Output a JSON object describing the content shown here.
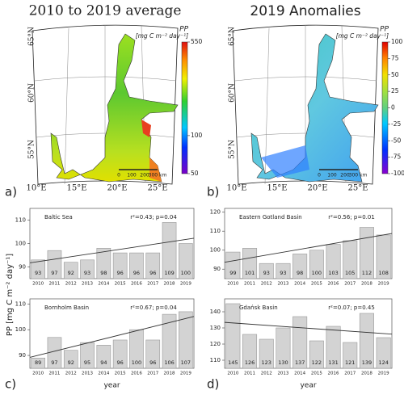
{
  "maps": [
    {
      "title": "2010 to 2019 average",
      "panel": "a)",
      "colorbar": {
        "var": "PP",
        "unit": "[mg C m⁻² day⁻¹]",
        "lim": [
          50,
          550
        ],
        "ticks": [
          50,
          100,
          550
        ],
        "log_scale": true
      },
      "lat_labels": [
        "65°N",
        "60°N",
        "55°N"
      ],
      "lon_labels": [
        "10°E",
        "15°E",
        "20°E",
        "25°E"
      ],
      "scale_labels": [
        "0",
        "100",
        "200",
        "300 km"
      ]
    },
    {
      "title": "2019 Anomalies",
      "panel": "b)",
      "colorbar": {
        "var": "PP",
        "unit": "[mg C m⁻² day⁻¹]",
        "lim": [
          -100,
          100
        ],
        "ticks": [
          -100,
          -75,
          -50,
          -25,
          0,
          25,
          50,
          75,
          100
        ],
        "log_scale": false
      },
      "lat_labels": [
        "65°N",
        "60°N",
        "55°N"
      ],
      "lon_labels": [
        "10°E",
        "15°E",
        "20°E",
        "25°E"
      ],
      "scale_labels": [
        "0",
        "100",
        "200",
        "300 km"
      ]
    }
  ],
  "shared_ylabel": "PP [mg C m⁻² day⁻¹]",
  "chart_data": [
    {
      "type": "bar",
      "title": "Baltic Sea",
      "annotation": "r²=0.43;  p=0.04",
      "color": "#d3d3d3",
      "trend": true,
      "categories": [
        "2010",
        "2011",
        "2012",
        "2013",
        "2014",
        "2015",
        "2016",
        "2017",
        "2018",
        "2019"
      ],
      "values": [
        93,
        97,
        92,
        93,
        98,
        96,
        96,
        96,
        109,
        100
      ],
      "ylim": [
        85,
        115
      ],
      "yticks": [
        90,
        100,
        110
      ]
    },
    {
      "type": "bar",
      "title": "Eastern Gotland Basin",
      "annotation": "r²=0.56;  p=0.01",
      "color": "#d3d3d3",
      "trend": true,
      "categories": [
        "2010",
        "2011",
        "2012",
        "2013",
        "2014",
        "2015",
        "2016",
        "2017",
        "2018",
        "2019"
      ],
      "values": [
        99,
        101,
        93,
        93,
        98,
        100,
        103,
        105,
        112,
        108
      ],
      "ylim": [
        85,
        122
      ],
      "yticks": [
        90,
        100,
        110,
        120
      ]
    },
    {
      "type": "bar",
      "title": "Bornholm Basin",
      "annotation": "r²=0.67;  p=0.04",
      "color": "#d3d3d3",
      "trend": true,
      "panel": "c)",
      "xlabel": "year",
      "categories": [
        "2010",
        "2011",
        "2012",
        "2013",
        "2014",
        "2015",
        "2016",
        "2017",
        "2018",
        "2019"
      ],
      "values": [
        89,
        97,
        92,
        95,
        94,
        96,
        100,
        96,
        106,
        107
      ],
      "ylim": [
        85,
        112
      ],
      "yticks": [
        90,
        100,
        110
      ]
    },
    {
      "type": "bar",
      "title": "Gdańsk Basin",
      "annotation": "r²=0.07;  p=0.45",
      "color": "#d3d3d3",
      "trend": true,
      "panel": "d)",
      "xlabel": "year",
      "categories": [
        "2010",
        "2011",
        "2012",
        "2013",
        "2014",
        "2015",
        "2016",
        "2017",
        "2018",
        "2019"
      ],
      "values": [
        145,
        126,
        123,
        130,
        137,
        122,
        131,
        121,
        139,
        124
      ],
      "ylim": [
        105,
        148
      ],
      "yticks": [
        110,
        120,
        130,
        140
      ]
    }
  ]
}
